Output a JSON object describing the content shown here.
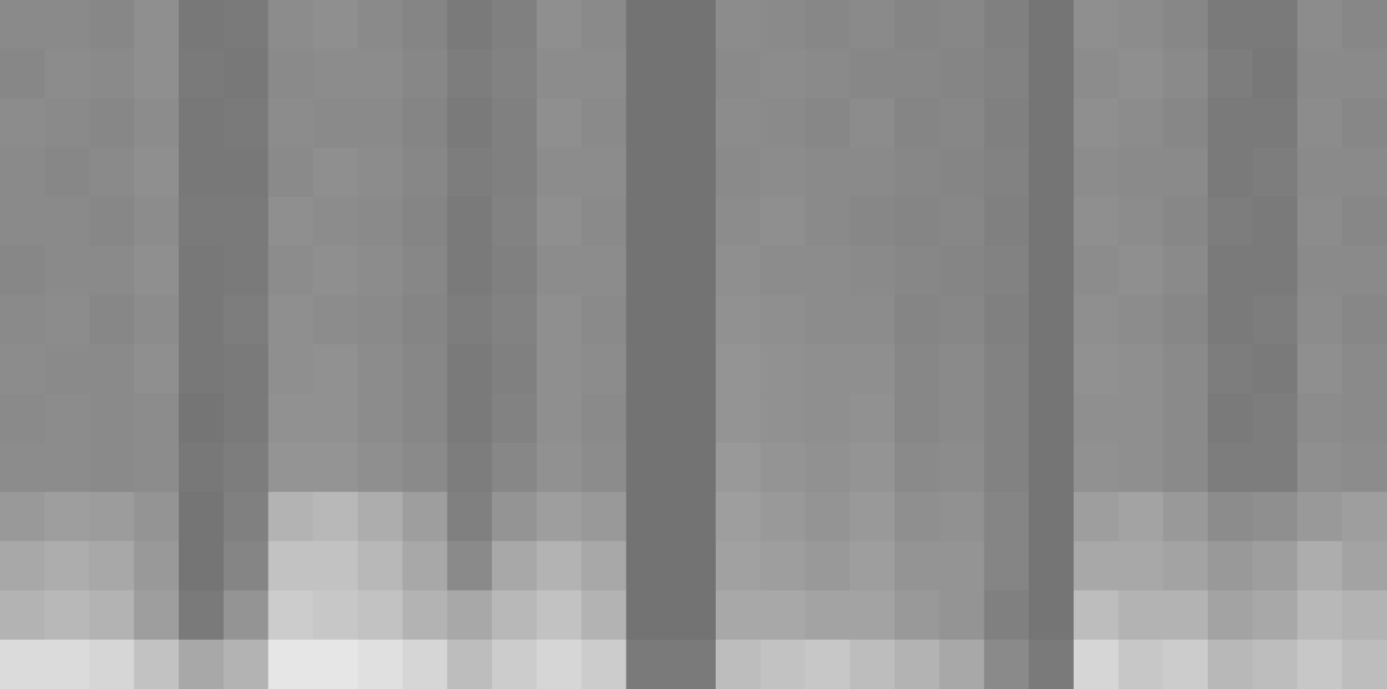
{
  "chart_data": {
    "type": "heatmap",
    "tick_labels": false,
    "zlim": [
      0,
      100
    ],
    "cells": [
      [
        54,
        54,
        53,
        56,
        47,
        48,
        55,
        56,
        54,
        52,
        48,
        50,
        56,
        54,
        45,
        45,
        55,
        54,
        53,
        54,
        52,
        53,
        50,
        46,
        56,
        55,
        53,
        48,
        48,
        55,
        53
      ],
      [
        53,
        55,
        54,
        56,
        48,
        47,
        54,
        55,
        55,
        53,
        49,
        51,
        55,
        55,
        45,
        45,
        54,
        55,
        54,
        53,
        53,
        52,
        51,
        46,
        55,
        56,
        54,
        49,
        47,
        54,
        54
      ],
      [
        55,
        54,
        53,
        55,
        47,
        48,
        55,
        54,
        54,
        52,
        48,
        50,
        56,
        54,
        45,
        45,
        55,
        54,
        53,
        55,
        52,
        53,
        50,
        46,
        56,
        55,
        53,
        48,
        48,
        55,
        53
      ],
      [
        54,
        53,
        54,
        56,
        47,
        47,
        54,
        56,
        55,
        53,
        49,
        50,
        55,
        55,
        45,
        45,
        54,
        55,
        54,
        54,
        53,
        52,
        51,
        46,
        55,
        54,
        54,
        48,
        49,
        54,
        54
      ],
      [
        54,
        54,
        53,
        55,
        48,
        48,
        56,
        55,
        54,
        52,
        48,
        51,
        56,
        54,
        45,
        45,
        55,
        56,
        54,
        53,
        52,
        53,
        50,
        46,
        56,
        55,
        53,
        49,
        48,
        55,
        53
      ],
      [
        53,
        54,
        54,
        56,
        47,
        48,
        55,
        56,
        55,
        53,
        48,
        50,
        55,
        55,
        45,
        45,
        56,
        55,
        55,
        54,
        53,
        52,
        51,
        46,
        55,
        56,
        54,
        48,
        48,
        54,
        54
      ],
      [
        54,
        55,
        53,
        55,
        47,
        49,
        56,
        55,
        54,
        52,
        49,
        51,
        56,
        54,
        45,
        45,
        57,
        56,
        55,
        55,
        52,
        53,
        50,
        46,
        56,
        55,
        53,
        48,
        49,
        55,
        53
      ],
      [
        55,
        54,
        54,
        56,
        47,
        48,
        56,
        57,
        55,
        53,
        48,
        50,
        56,
        55,
        45,
        45,
        58,
        57,
        56,
        56,
        53,
        54,
        51,
        46,
        57,
        56,
        54,
        49,
        48,
        56,
        54
      ],
      [
        54,
        55,
        54,
        55,
        46,
        48,
        57,
        57,
        55,
        53,
        48,
        51,
        56,
        54,
        45,
        45,
        58,
        57,
        56,
        57,
        53,
        54,
        51,
        46,
        56,
        56,
        54,
        48,
        49,
        55,
        54
      ],
      [
        55,
        55,
        54,
        55,
        47,
        49,
        58,
        58,
        56,
        54,
        49,
        53,
        57,
        55,
        45,
        45,
        60,
        58,
        57,
        58,
        54,
        55,
        51,
        46,
        57,
        56,
        54,
        49,
        49,
        56,
        55
      ],
      [
        60,
        62,
        61,
        58,
        46,
        50,
        70,
        72,
        68,
        62,
        50,
        58,
        62,
        60,
        45,
        45,
        62,
        60,
        58,
        60,
        56,
        57,
        52,
        46,
        62,
        64,
        60,
        55,
        56,
        60,
        62
      ],
      [
        66,
        68,
        66,
        60,
        46,
        52,
        76,
        76,
        72,
        66,
        54,
        66,
        70,
        66,
        45,
        45,
        63,
        62,
        60,
        62,
        58,
        58,
        52,
        46,
        66,
        66,
        64,
        60,
        62,
        68,
        64
      ],
      [
        70,
        72,
        70,
        62,
        48,
        58,
        80,
        78,
        76,
        70,
        66,
        72,
        76,
        70,
        45,
        45,
        66,
        66,
        64,
        64,
        60,
        58,
        50,
        46,
        74,
        70,
        70,
        64,
        66,
        72,
        70
      ],
      [
        86,
        86,
        84,
        76,
        66,
        70,
        90,
        90,
        88,
        84,
        74,
        80,
        84,
        80,
        48,
        48,
        74,
        76,
        78,
        74,
        70,
        66,
        54,
        48,
        84,
        78,
        80,
        72,
        74,
        78,
        74
      ]
    ]
  }
}
